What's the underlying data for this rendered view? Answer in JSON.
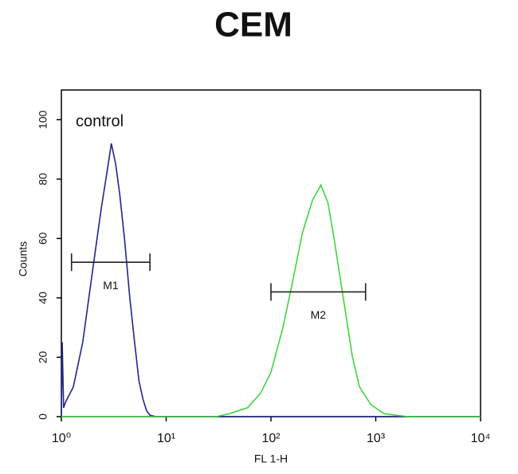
{
  "chart_data": {
    "type": "line",
    "title": "CEM",
    "xlabel": "FL 1-H",
    "ylabel": "Counts",
    "xscale": "log",
    "xlim": [
      1,
      10000
    ],
    "ylim": [
      0,
      110
    ],
    "xticks": [
      {
        "value": 1,
        "label": "10⁰"
      },
      {
        "value": 10,
        "label": "10¹"
      },
      {
        "value": 100,
        "label": "10²"
      },
      {
        "value": 1000,
        "label": "10³"
      },
      {
        "value": 10000,
        "label": "10⁴"
      }
    ],
    "yticks": [
      0,
      20,
      40,
      60,
      80,
      100
    ],
    "series": [
      {
        "name": "control",
        "color": "#23238e",
        "x": [
          1.0,
          1.02,
          1.05,
          1.1,
          1.3,
          1.6,
          2.0,
          2.4,
          2.8,
          3.0,
          3.3,
          3.6,
          4.0,
          4.5,
          5.0,
          5.5,
          6.0,
          6.5,
          7.0,
          8.0,
          10.0,
          1000.0,
          10000.0
        ],
        "values": [
          0,
          25,
          3,
          5,
          10,
          25,
          50,
          70,
          85,
          92,
          85,
          75,
          60,
          40,
          25,
          12,
          6,
          2,
          0.5,
          0,
          0,
          0,
          0
        ]
      },
      {
        "color": "#3ed63e",
        "x": [
          1.0,
          30,
          40,
          60,
          80,
          100,
          130,
          160,
          200,
          250,
          300,
          350,
          400,
          500,
          600,
          700,
          900,
          1200,
          2000,
          10000
        ],
        "values": [
          0,
          0,
          1,
          3,
          8,
          15,
          30,
          45,
          62,
          73,
          78,
          72,
          60,
          38,
          20,
          10,
          4,
          1,
          0,
          0
        ]
      }
    ],
    "markers": [
      {
        "label": "M1",
        "x": [
          1.25,
          7
        ],
        "y": 52
      },
      {
        "label": "M2",
        "x": [
          100,
          800
        ],
        "y": 42
      }
    ]
  }
}
